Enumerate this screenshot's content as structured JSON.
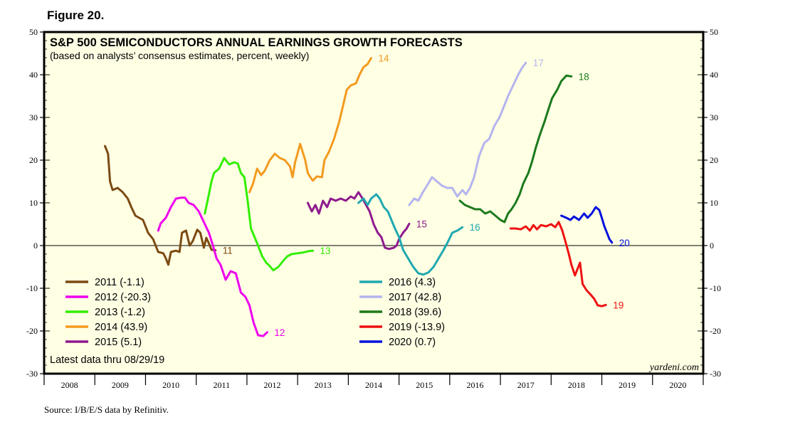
{
  "figure_label": "Figure 20.",
  "source": "Source: I/B/E/S data by Refinitiv.",
  "chart_data": {
    "type": "line",
    "title": "S&P 500 SEMICONDUCTORS ANNUAL EARNINGS GROWTH FORECASTS",
    "subtitle": "(based on analysts’ consensus estimates, percent, weekly)",
    "note": "Latest data thru 08/29/19",
    "watermark": "yardeni.com",
    "xlabel": "",
    "ylabel": "",
    "ylim": [
      -30,
      50
    ],
    "yticks": [
      "50",
      "40",
      "30",
      "20",
      "10",
      "0",
      "-10",
      "-20",
      "-30"
    ],
    "xlim": [
      2008,
      2021
    ],
    "x_labels": [
      "2008",
      "2009",
      "2010",
      "2011",
      "2012",
      "2013",
      "2014",
      "2015",
      "2016",
      "2017",
      "2018",
      "2019",
      "2020"
    ],
    "series": [
      {
        "name": "2011",
        "legend": "2011 (-1.1)",
        "end_label": "11",
        "color": "#7b4a12",
        "points": [
          [
            2009.2,
            23.3
          ],
          [
            2009.26,
            21.5
          ],
          [
            2009.3,
            15
          ],
          [
            2009.35,
            13
          ],
          [
            2009.45,
            13.5
          ],
          [
            2009.55,
            12.5
          ],
          [
            2009.65,
            11
          ],
          [
            2009.72,
            9
          ],
          [
            2009.8,
            7
          ],
          [
            2009.95,
            6
          ],
          [
            2010.05,
            3
          ],
          [
            2010.15,
            1.5
          ],
          [
            2010.25,
            -1.5
          ],
          [
            2010.35,
            -1.8
          ],
          [
            2010.4,
            -3
          ],
          [
            2010.45,
            -4.5
          ],
          [
            2010.5,
            -1.5
          ],
          [
            2010.6,
            -1.2
          ],
          [
            2010.67,
            -1.5
          ],
          [
            2010.72,
            3
          ],
          [
            2010.8,
            3.5
          ],
          [
            2010.87,
            0
          ],
          [
            2010.93,
            1
          ],
          [
            2011.02,
            3.7
          ],
          [
            2011.08,
            3
          ],
          [
            2011.15,
            -0.5
          ],
          [
            2011.2,
            1.8
          ],
          [
            2011.25,
            0.5
          ],
          [
            2011.3,
            -1
          ],
          [
            2011.38,
            -1.1
          ]
        ]
      },
      {
        "name": "2012",
        "legend": "2012 (-20.3)",
        "end_label": "12",
        "color": "#ee00ee",
        "points": [
          [
            2010.25,
            3.5
          ],
          [
            2010.3,
            5.2
          ],
          [
            2010.4,
            6.5
          ],
          [
            2010.5,
            9
          ],
          [
            2010.6,
            11
          ],
          [
            2010.7,
            11.2
          ],
          [
            2010.78,
            11.2
          ],
          [
            2010.85,
            10
          ],
          [
            2010.95,
            9.5
          ],
          [
            2011.05,
            8
          ],
          [
            2011.15,
            5.5
          ],
          [
            2011.25,
            3
          ],
          [
            2011.33,
            0
          ],
          [
            2011.4,
            -3
          ],
          [
            2011.48,
            -4.5
          ],
          [
            2011.58,
            -8
          ],
          [
            2011.68,
            -6
          ],
          [
            2011.78,
            -6.5
          ],
          [
            2011.88,
            -11
          ],
          [
            2011.97,
            -12
          ],
          [
            2012.05,
            -14
          ],
          [
            2012.13,
            -18
          ],
          [
            2012.22,
            -21
          ],
          [
            2012.32,
            -21.2
          ],
          [
            2012.4,
            -20.3
          ]
        ]
      },
      {
        "name": "2013",
        "legend": "2013 (-1.2)",
        "end_label": "13",
        "color": "#33ee00",
        "points": [
          [
            2011.17,
            7.5
          ],
          [
            2011.25,
            12
          ],
          [
            2011.3,
            15
          ],
          [
            2011.35,
            17
          ],
          [
            2011.45,
            18
          ],
          [
            2011.55,
            20.5
          ],
          [
            2011.65,
            19
          ],
          [
            2011.75,
            19.5
          ],
          [
            2011.82,
            19.2
          ],
          [
            2011.88,
            17
          ],
          [
            2011.95,
            16
          ],
          [
            2012.02,
            10
          ],
          [
            2012.08,
            4
          ],
          [
            2012.15,
            2
          ],
          [
            2012.22,
            0
          ],
          [
            2012.3,
            -2.5
          ],
          [
            2012.38,
            -4
          ],
          [
            2012.45,
            -4.8
          ],
          [
            2012.52,
            -5.8
          ],
          [
            2012.62,
            -5
          ],
          [
            2012.72,
            -3.5
          ],
          [
            2012.8,
            -2.5
          ],
          [
            2012.88,
            -2
          ],
          [
            2013.0,
            -1.8
          ],
          [
            2013.12,
            -1.6
          ],
          [
            2013.22,
            -1.3
          ],
          [
            2013.3,
            -1.2
          ]
        ]
      },
      {
        "name": "2014",
        "legend": "2014 (43.9)",
        "end_label": "14",
        "color": "#f39a1e",
        "points": [
          [
            2012.05,
            12.5
          ],
          [
            2012.12,
            14.5
          ],
          [
            2012.2,
            18
          ],
          [
            2012.28,
            16.5
          ],
          [
            2012.35,
            17.5
          ],
          [
            2012.45,
            20
          ],
          [
            2012.55,
            21.5
          ],
          [
            2012.65,
            20.5
          ],
          [
            2012.75,
            20
          ],
          [
            2012.85,
            18.5
          ],
          [
            2012.9,
            16
          ],
          [
            2012.95,
            19.5
          ],
          [
            2013.05,
            23.8
          ],
          [
            2013.15,
            20
          ],
          [
            2013.2,
            17
          ],
          [
            2013.25,
            16
          ],
          [
            2013.3,
            15.2
          ],
          [
            2013.38,
            16.2
          ],
          [
            2013.48,
            16
          ],
          [
            2013.53,
            20
          ],
          [
            2013.62,
            22
          ],
          [
            2013.72,
            25
          ],
          [
            2013.82,
            29
          ],
          [
            2013.9,
            33
          ],
          [
            2013.97,
            36.5
          ],
          [
            2014.05,
            37.5
          ],
          [
            2014.15,
            38
          ],
          [
            2014.22,
            40
          ],
          [
            2014.3,
            41.8
          ],
          [
            2014.38,
            42.5
          ],
          [
            2014.45,
            43.9
          ]
        ]
      },
      {
        "name": "2015",
        "legend": "2015 (5.1)",
        "end_label": "15",
        "color": "#8e1a8e",
        "points": [
          [
            2013.2,
            10
          ],
          [
            2013.28,
            8
          ],
          [
            2013.35,
            9.5
          ],
          [
            2013.42,
            7.5
          ],
          [
            2013.5,
            10.5
          ],
          [
            2013.58,
            9
          ],
          [
            2013.65,
            11
          ],
          [
            2013.75,
            10.5
          ],
          [
            2013.85,
            11
          ],
          [
            2013.95,
            10.5
          ],
          [
            2014.05,
            11.5
          ],
          [
            2014.12,
            11
          ],
          [
            2014.2,
            12.5
          ],
          [
            2014.28,
            11
          ],
          [
            2014.35,
            9.5
          ],
          [
            2014.42,
            8
          ],
          [
            2014.5,
            5
          ],
          [
            2014.58,
            3
          ],
          [
            2014.65,
            2
          ],
          [
            2014.72,
            -0.5
          ],
          [
            2014.8,
            -0.8
          ],
          [
            2014.9,
            -0.5
          ],
          [
            2014.95,
            0
          ],
          [
            2015.0,
            1.5
          ],
          [
            2015.08,
            3
          ],
          [
            2015.15,
            4
          ],
          [
            2015.2,
            5.1
          ]
        ]
      },
      {
        "name": "2016",
        "legend": "2016 (4.3)",
        "end_label": "16",
        "color": "#1fa8b0",
        "points": [
          [
            2014.2,
            10
          ],
          [
            2014.3,
            11
          ],
          [
            2014.38,
            9.5
          ],
          [
            2014.45,
            11
          ],
          [
            2014.55,
            12
          ],
          [
            2014.62,
            11
          ],
          [
            2014.7,
            9
          ],
          [
            2014.78,
            8
          ],
          [
            2014.85,
            6
          ],
          [
            2014.92,
            4
          ],
          [
            2015.0,
            2
          ],
          [
            2015.08,
            -1
          ],
          [
            2015.18,
            -3
          ],
          [
            2015.28,
            -5
          ],
          [
            2015.38,
            -6.5
          ],
          [
            2015.48,
            -6.8
          ],
          [
            2015.58,
            -6.3
          ],
          [
            2015.68,
            -5
          ],
          [
            2015.78,
            -3
          ],
          [
            2015.88,
            -1
          ],
          [
            2015.97,
            1
          ],
          [
            2016.05,
            3
          ],
          [
            2016.15,
            3.5
          ],
          [
            2016.25,
            4.3
          ]
        ]
      },
      {
        "name": "2017",
        "legend": "2017 (42.8)",
        "end_label": "17",
        "color": "#b4b4ee",
        "points": [
          [
            2015.2,
            9.5
          ],
          [
            2015.3,
            11
          ],
          [
            2015.38,
            10.5
          ],
          [
            2015.47,
            12.5
          ],
          [
            2015.55,
            14
          ],
          [
            2015.65,
            16
          ],
          [
            2015.75,
            15
          ],
          [
            2015.85,
            14
          ],
          [
            2015.95,
            13.5
          ],
          [
            2016.05,
            13.5
          ],
          [
            2016.15,
            11.5
          ],
          [
            2016.25,
            13
          ],
          [
            2016.32,
            12
          ],
          [
            2016.4,
            13.5
          ],
          [
            2016.48,
            16
          ],
          [
            2016.58,
            21
          ],
          [
            2016.68,
            24
          ],
          [
            2016.78,
            25
          ],
          [
            2016.88,
            28
          ],
          [
            2016.98,
            30
          ],
          [
            2017.05,
            32
          ],
          [
            2017.15,
            35
          ],
          [
            2017.25,
            37.5
          ],
          [
            2017.35,
            40
          ],
          [
            2017.42,
            41.5
          ],
          [
            2017.5,
            42.8
          ]
        ]
      },
      {
        "name": "2018",
        "legend": "2018 (39.6)",
        "end_label": "18",
        "color": "#1b7a1b",
        "points": [
          [
            2016.2,
            10.5
          ],
          [
            2016.3,
            9.5
          ],
          [
            2016.4,
            9
          ],
          [
            2016.5,
            8.5
          ],
          [
            2016.6,
            8.5
          ],
          [
            2016.7,
            7.5
          ],
          [
            2016.8,
            8
          ],
          [
            2016.9,
            7
          ],
          [
            2017.0,
            6
          ],
          [
            2017.08,
            5.5
          ],
          [
            2017.15,
            7.5
          ],
          [
            2017.22,
            8.5
          ],
          [
            2017.3,
            10
          ],
          [
            2017.38,
            12
          ],
          [
            2017.45,
            14.5
          ],
          [
            2017.55,
            17
          ],
          [
            2017.62,
            19.5
          ],
          [
            2017.7,
            23
          ],
          [
            2017.78,
            26
          ],
          [
            2017.87,
            29
          ],
          [
            2017.95,
            32
          ],
          [
            2018.02,
            34.5
          ],
          [
            2018.12,
            36.5
          ],
          [
            2018.2,
            38.5
          ],
          [
            2018.3,
            39.8
          ],
          [
            2018.4,
            39.6
          ]
        ]
      },
      {
        "name": "2019",
        "legend": "2019 (-13.9)",
        "end_label": "19",
        "color": "#ee1111",
        "points": [
          [
            2017.2,
            4
          ],
          [
            2017.3,
            4
          ],
          [
            2017.4,
            3.8
          ],
          [
            2017.5,
            4.5
          ],
          [
            2017.58,
            3.5
          ],
          [
            2017.65,
            4.8
          ],
          [
            2017.72,
            3.8
          ],
          [
            2017.8,
            4.8
          ],
          [
            2017.9,
            4.5
          ],
          [
            2018.0,
            5
          ],
          [
            2018.08,
            4.3
          ],
          [
            2018.15,
            5.5
          ],
          [
            2018.22,
            3.5
          ],
          [
            2018.28,
            1
          ],
          [
            2018.35,
            -2
          ],
          [
            2018.4,
            -4.5
          ],
          [
            2018.47,
            -7
          ],
          [
            2018.52,
            -5.5
          ],
          [
            2018.57,
            -4
          ],
          [
            2018.62,
            -9
          ],
          [
            2018.7,
            -10.5
          ],
          [
            2018.78,
            -11.5
          ],
          [
            2018.85,
            -12.5
          ],
          [
            2018.92,
            -14
          ],
          [
            2019.0,
            -14.2
          ],
          [
            2019.08,
            -13.9
          ]
        ]
      },
      {
        "name": "2020",
        "legend": "2020 (0.7)",
        "end_label": "20",
        "color": "#0011dd",
        "points": [
          [
            2018.2,
            7
          ],
          [
            2018.3,
            6.5
          ],
          [
            2018.38,
            6
          ],
          [
            2018.45,
            6.8
          ],
          [
            2018.55,
            6
          ],
          [
            2018.65,
            7.5
          ],
          [
            2018.72,
            6.5
          ],
          [
            2018.8,
            7.5
          ],
          [
            2018.88,
            9
          ],
          [
            2018.95,
            8.3
          ],
          [
            2019.0,
            6.5
          ],
          [
            2019.05,
            4.5
          ],
          [
            2019.1,
            3
          ],
          [
            2019.15,
            1.5
          ],
          [
            2019.2,
            0.7
          ]
        ]
      }
    ]
  }
}
